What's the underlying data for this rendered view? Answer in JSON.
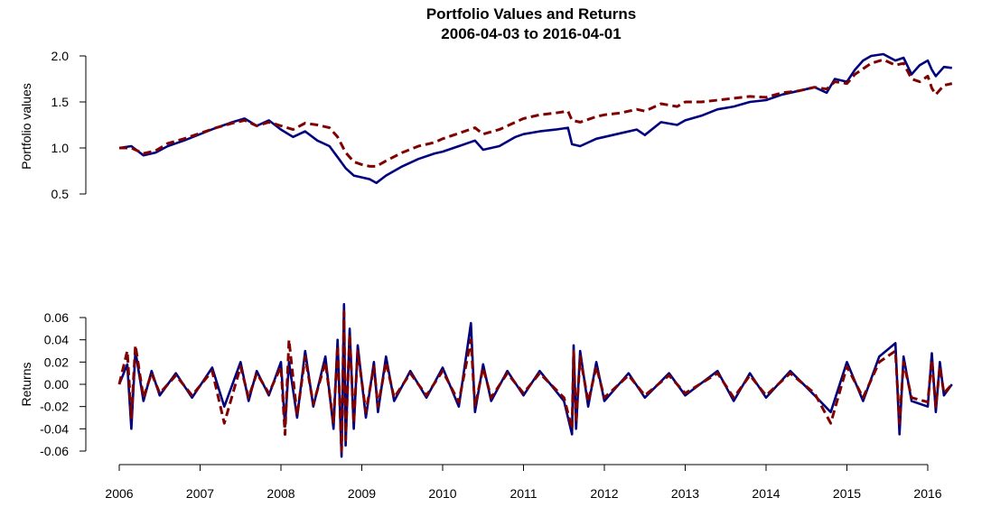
{
  "chart_data": [
    {
      "type": "line",
      "title": "Portfolio Values and Returns",
      "subtitle": "2006-04-03 to 2016-04-01",
      "ylabel": "Portfolio values",
      "ylim": [
        0.5,
        2.0
      ],
      "yticks": [
        "0.5",
        "1.0",
        "1.5",
        "2.0"
      ],
      "xlim": [
        2006.0,
        2016.3
      ],
      "grid": false,
      "series": [
        {
          "color": "#00007f",
          "linestyle": "solid",
          "x": [
            2006.0,
            2006.15,
            2006.3,
            2006.45,
            2006.6,
            2006.8,
            2007.0,
            2007.2,
            2007.4,
            2007.55,
            2007.7,
            2007.85,
            2008.0,
            2008.15,
            2008.3,
            2008.45,
            2008.6,
            2008.7,
            2008.8,
            2008.9,
            2009.0,
            2009.1,
            2009.18,
            2009.3,
            2009.5,
            2009.7,
            2009.9,
            2010.0,
            2010.2,
            2010.4,
            2010.5,
            2010.7,
            2010.9,
            2011.0,
            2011.2,
            2011.4,
            2011.55,
            2011.6,
            2011.7,
            2011.9,
            2012.0,
            2012.2,
            2012.4,
            2012.5,
            2012.7,
            2012.9,
            2013.0,
            2013.2,
            2013.4,
            2013.6,
            2013.8,
            2014.0,
            2014.2,
            2014.4,
            2014.6,
            2014.75,
            2014.85,
            2015.0,
            2015.1,
            2015.2,
            2015.3,
            2015.45,
            2015.6,
            2015.7,
            2015.8,
            2015.9,
            2016.0,
            2016.05,
            2016.1,
            2016.2,
            2016.3
          ],
          "y": [
            1.0,
            1.02,
            0.92,
            0.95,
            1.02,
            1.08,
            1.15,
            1.22,
            1.28,
            1.32,
            1.24,
            1.3,
            1.2,
            1.12,
            1.18,
            1.08,
            1.02,
            0.9,
            0.78,
            0.7,
            0.68,
            0.66,
            0.62,
            0.7,
            0.8,
            0.88,
            0.94,
            0.96,
            1.02,
            1.08,
            0.98,
            1.02,
            1.12,
            1.15,
            1.18,
            1.2,
            1.22,
            1.04,
            1.02,
            1.1,
            1.12,
            1.16,
            1.2,
            1.14,
            1.28,
            1.25,
            1.3,
            1.35,
            1.42,
            1.45,
            1.5,
            1.52,
            1.58,
            1.62,
            1.66,
            1.6,
            1.75,
            1.72,
            1.85,
            1.95,
            2.0,
            2.02,
            1.95,
            1.98,
            1.8,
            1.9,
            1.95,
            1.85,
            1.78,
            1.88,
            1.87
          ]
        },
        {
          "color": "#7f0000",
          "linestyle": "dashed",
          "x": [
            2006.0,
            2006.15,
            2006.3,
            2006.45,
            2006.6,
            2006.8,
            2007.0,
            2007.2,
            2007.4,
            2007.55,
            2007.7,
            2007.85,
            2008.0,
            2008.15,
            2008.3,
            2008.45,
            2008.6,
            2008.7,
            2008.8,
            2008.9,
            2009.0,
            2009.1,
            2009.18,
            2009.3,
            2009.5,
            2009.7,
            2009.9,
            2010.0,
            2010.2,
            2010.4,
            2010.5,
            2010.7,
            2010.9,
            2011.0,
            2011.2,
            2011.4,
            2011.55,
            2011.6,
            2011.7,
            2011.9,
            2012.0,
            2012.2,
            2012.4,
            2012.5,
            2012.7,
            2012.9,
            2013.0,
            2013.2,
            2013.4,
            2013.6,
            2013.8,
            2014.0,
            2014.2,
            2014.4,
            2014.6,
            2014.75,
            2014.85,
            2015.0,
            2015.1,
            2015.2,
            2015.3,
            2015.45,
            2015.6,
            2015.7,
            2015.8,
            2015.9,
            2016.0,
            2016.05,
            2016.1,
            2016.2,
            2016.3
          ],
          "y": [
            1.0,
            1.0,
            0.94,
            0.97,
            1.05,
            1.1,
            1.16,
            1.22,
            1.27,
            1.3,
            1.24,
            1.28,
            1.24,
            1.2,
            1.27,
            1.25,
            1.22,
            1.12,
            0.95,
            0.85,
            0.82,
            0.8,
            0.8,
            0.86,
            0.95,
            1.02,
            1.06,
            1.1,
            1.16,
            1.22,
            1.15,
            1.2,
            1.28,
            1.32,
            1.36,
            1.38,
            1.4,
            1.3,
            1.28,
            1.34,
            1.36,
            1.38,
            1.42,
            1.4,
            1.48,
            1.45,
            1.5,
            1.5,
            1.52,
            1.54,
            1.56,
            1.55,
            1.6,
            1.62,
            1.66,
            1.64,
            1.72,
            1.7,
            1.8,
            1.86,
            1.92,
            1.96,
            1.9,
            1.92,
            1.75,
            1.72,
            1.78,
            1.65,
            1.58,
            1.68,
            1.7
          ]
        }
      ]
    },
    {
      "type": "line",
      "ylabel": "Returns",
      "ylim": [
        -0.065,
        0.07
      ],
      "yticks": [
        "-0.06",
        "-0.04",
        "-0.02",
        "0.00",
        "0.02",
        "0.04",
        "0.06"
      ],
      "xlim": [
        2006.0,
        2016.3
      ],
      "xticks": [
        "2006",
        "2007",
        "2008",
        "2009",
        "2010",
        "2011",
        "2012",
        "2013",
        "2014",
        "2015",
        "2016"
      ],
      "grid": false,
      "series": [
        {
          "color": "#00007f",
          "linestyle": "solid",
          "x": [
            2006.0,
            2006.1,
            2006.15,
            2006.2,
            2006.3,
            2006.4,
            2006.5,
            2006.7,
            2006.9,
            2007.15,
            2007.3,
            2007.5,
            2007.6,
            2007.7,
            2007.85,
            2008.0,
            2008.05,
            2008.1,
            2008.2,
            2008.3,
            2008.4,
            2008.55,
            2008.65,
            2008.7,
            2008.75,
            2008.78,
            2008.8,
            2008.85,
            2008.9,
            2008.95,
            2009.05,
            2009.15,
            2009.2,
            2009.3,
            2009.4,
            2009.6,
            2009.8,
            2010.0,
            2010.2,
            2010.35,
            2010.4,
            2010.5,
            2010.6,
            2010.8,
            2011.0,
            2011.2,
            2011.5,
            2011.6,
            2011.62,
            2011.65,
            2011.7,
            2011.8,
            2011.9,
            2012.0,
            2012.3,
            2012.5,
            2012.8,
            2013.0,
            2013.4,
            2013.6,
            2013.8,
            2014.0,
            2014.3,
            2014.6,
            2014.8,
            2015.0,
            2015.2,
            2015.4,
            2015.6,
            2015.65,
            2015.7,
            2015.8,
            2016.0,
            2016.05,
            2016.1,
            2016.15,
            2016.2,
            2016.3
          ],
          "y": [
            0.0,
            0.018,
            -0.04,
            0.03,
            -0.015,
            0.012,
            -0.01,
            0.01,
            -0.012,
            0.015,
            -0.02,
            0.02,
            -0.015,
            0.012,
            -0.01,
            0.02,
            -0.038,
            0.02,
            -0.03,
            0.03,
            -0.02,
            0.025,
            -0.04,
            0.04,
            -0.065,
            0.072,
            -0.055,
            0.05,
            -0.04,
            0.035,
            -0.03,
            0.02,
            -0.025,
            0.025,
            -0.015,
            0.012,
            -0.012,
            0.015,
            -0.02,
            0.055,
            -0.025,
            0.018,
            -0.015,
            0.012,
            -0.01,
            0.012,
            -0.015,
            -0.045,
            0.035,
            -0.04,
            0.03,
            -0.02,
            0.02,
            -0.015,
            0.01,
            -0.012,
            0.01,
            -0.01,
            0.012,
            -0.015,
            0.01,
            -0.012,
            0.012,
            -0.01,
            -0.025,
            0.02,
            -0.015,
            0.025,
            0.037,
            -0.045,
            0.025,
            -0.015,
            -0.02,
            0.028,
            -0.025,
            0.02,
            -0.01,
            0.0
          ]
        },
        {
          "color": "#7f0000",
          "linestyle": "dashed",
          "x": [
            2006.0,
            2006.1,
            2006.15,
            2006.2,
            2006.3,
            2006.4,
            2006.5,
            2006.7,
            2006.9,
            2007.15,
            2007.3,
            2007.5,
            2007.6,
            2007.7,
            2007.85,
            2008.0,
            2008.05,
            2008.1,
            2008.2,
            2008.3,
            2008.4,
            2008.55,
            2008.65,
            2008.7,
            2008.75,
            2008.78,
            2008.8,
            2008.85,
            2008.9,
            2008.95,
            2009.05,
            2009.15,
            2009.2,
            2009.3,
            2009.4,
            2009.6,
            2009.8,
            2010.0,
            2010.2,
            2010.35,
            2010.4,
            2010.5,
            2010.6,
            2010.8,
            2011.0,
            2011.2,
            2011.5,
            2011.6,
            2011.62,
            2011.65,
            2011.7,
            2011.8,
            2011.9,
            2012.0,
            2012.3,
            2012.5,
            2012.8,
            2013.0,
            2013.4,
            2013.6,
            2013.8,
            2014.0,
            2014.3,
            2014.6,
            2014.8,
            2015.0,
            2015.2,
            2015.4,
            2015.6,
            2015.65,
            2015.7,
            2015.8,
            2016.0,
            2016.05,
            2016.1,
            2016.15,
            2016.2,
            2016.3
          ],
          "y": [
            0.0,
            0.03,
            -0.03,
            0.035,
            -0.012,
            0.01,
            -0.008,
            0.008,
            -0.01,
            0.012,
            -0.035,
            0.016,
            -0.012,
            0.01,
            -0.008,
            0.016,
            -0.045,
            0.04,
            -0.028,
            0.025,
            -0.018,
            0.02,
            -0.035,
            0.035,
            -0.06,
            0.065,
            -0.05,
            0.045,
            -0.035,
            0.03,
            -0.025,
            0.016,
            -0.02,
            0.02,
            -0.012,
            0.01,
            -0.01,
            0.012,
            -0.016,
            0.04,
            -0.02,
            0.015,
            -0.012,
            0.01,
            -0.008,
            0.01,
            -0.012,
            -0.04,
            0.03,
            -0.035,
            0.025,
            -0.016,
            0.016,
            -0.012,
            0.008,
            -0.01,
            0.008,
            -0.008,
            0.01,
            -0.012,
            0.008,
            -0.01,
            0.01,
            -0.008,
            -0.035,
            0.016,
            -0.012,
            0.02,
            0.03,
            -0.035,
            0.02,
            -0.012,
            -0.016,
            0.022,
            -0.02,
            0.016,
            -0.008,
            0.0
          ]
        }
      ]
    }
  ]
}
